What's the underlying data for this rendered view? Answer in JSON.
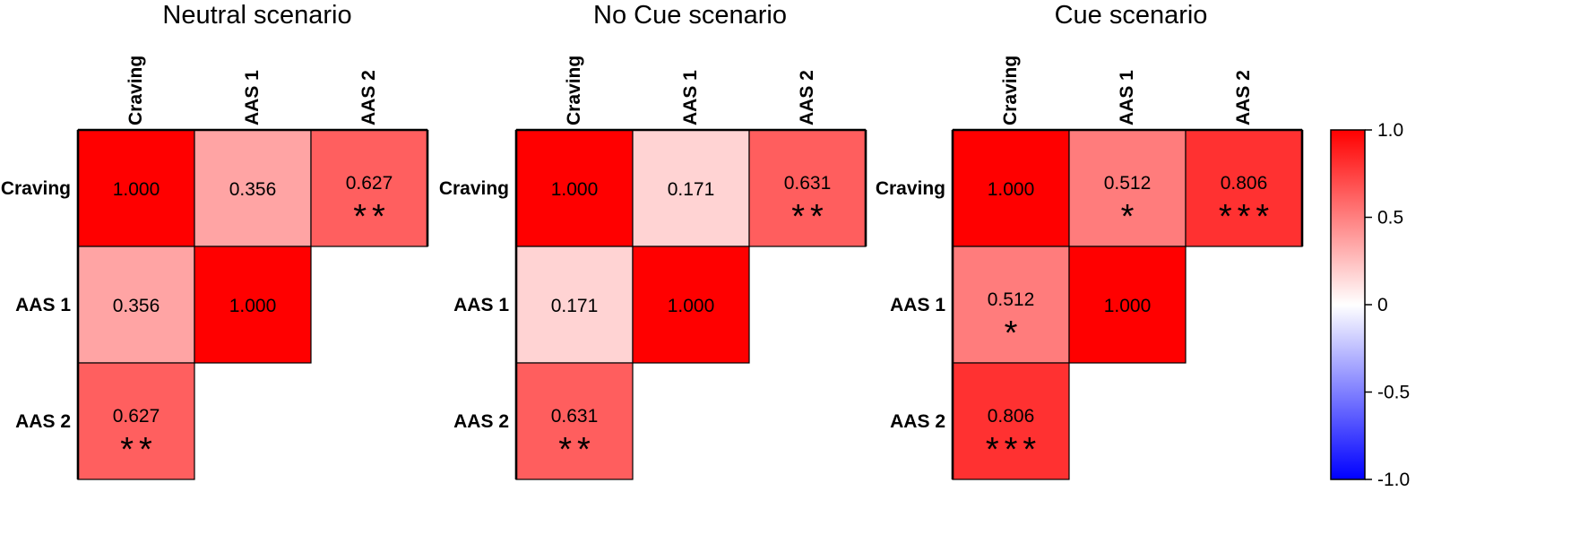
{
  "chart_data": {
    "type": "heatmap",
    "labels": [
      "Craving",
      "AAS 1",
      "AAS 2"
    ],
    "panels": [
      {
        "title": "Neutral scenario",
        "cells": [
          {
            "row": "Craving",
            "col": "Craving",
            "value": 1.0,
            "label": "1.000",
            "stars": ""
          },
          {
            "row": "Craving",
            "col": "AAS 1",
            "value": 0.356,
            "label": "0.356",
            "stars": ""
          },
          {
            "row": "Craving",
            "col": "AAS 2",
            "value": 0.627,
            "label": "0.627",
            "stars": "**"
          },
          {
            "row": "AAS 1",
            "col": "Craving",
            "value": 0.356,
            "label": "0.356",
            "stars": ""
          },
          {
            "row": "AAS 1",
            "col": "AAS 1",
            "value": 1.0,
            "label": "1.000",
            "stars": ""
          },
          {
            "row": "AAS 2",
            "col": "Craving",
            "value": 0.627,
            "label": "0.627",
            "stars": "**"
          }
        ]
      },
      {
        "title": "No Cue scenario",
        "cells": [
          {
            "row": "Craving",
            "col": "Craving",
            "value": 1.0,
            "label": "1.000",
            "stars": ""
          },
          {
            "row": "Craving",
            "col": "AAS 1",
            "value": 0.171,
            "label": "0.171",
            "stars": ""
          },
          {
            "row": "Craving",
            "col": "AAS 2",
            "value": 0.631,
            "label": "0.631",
            "stars": "**"
          },
          {
            "row": "AAS 1",
            "col": "Craving",
            "value": 0.171,
            "label": "0.171",
            "stars": ""
          },
          {
            "row": "AAS 1",
            "col": "AAS 1",
            "value": 1.0,
            "label": "1.000",
            "stars": ""
          },
          {
            "row": "AAS 2",
            "col": "Craving",
            "value": 0.631,
            "label": "0.631",
            "stars": "**"
          }
        ]
      },
      {
        "title": "Cue scenario",
        "cells": [
          {
            "row": "Craving",
            "col": "Craving",
            "value": 1.0,
            "label": "1.000",
            "stars": ""
          },
          {
            "row": "Craving",
            "col": "AAS 1",
            "value": 0.512,
            "label": "0.512",
            "stars": "*"
          },
          {
            "row": "Craving",
            "col": "AAS 2",
            "value": 0.806,
            "label": "0.806",
            "stars": "***"
          },
          {
            "row": "AAS 1",
            "col": "Craving",
            "value": 0.512,
            "label": "0.512",
            "stars": "*"
          },
          {
            "row": "AAS 1",
            "col": "AAS 1",
            "value": 1.0,
            "label": "1.000",
            "stars": ""
          },
          {
            "row": "AAS 2",
            "col": "Craving",
            "value": 0.806,
            "label": "0.806",
            "stars": "***"
          }
        ]
      }
    ],
    "colorbar": {
      "min": -1.0,
      "max": 1.0,
      "ticks": [
        1.0,
        0.5,
        0,
        -0.5,
        -1.0
      ],
      "tick_labels": [
        "1.0",
        "0.5",
        "0",
        "-0.5",
        "-1.0"
      ],
      "colors": {
        "negative": "#0000ff",
        "zero": "#ffffff",
        "positive": "#ff0000"
      }
    }
  }
}
